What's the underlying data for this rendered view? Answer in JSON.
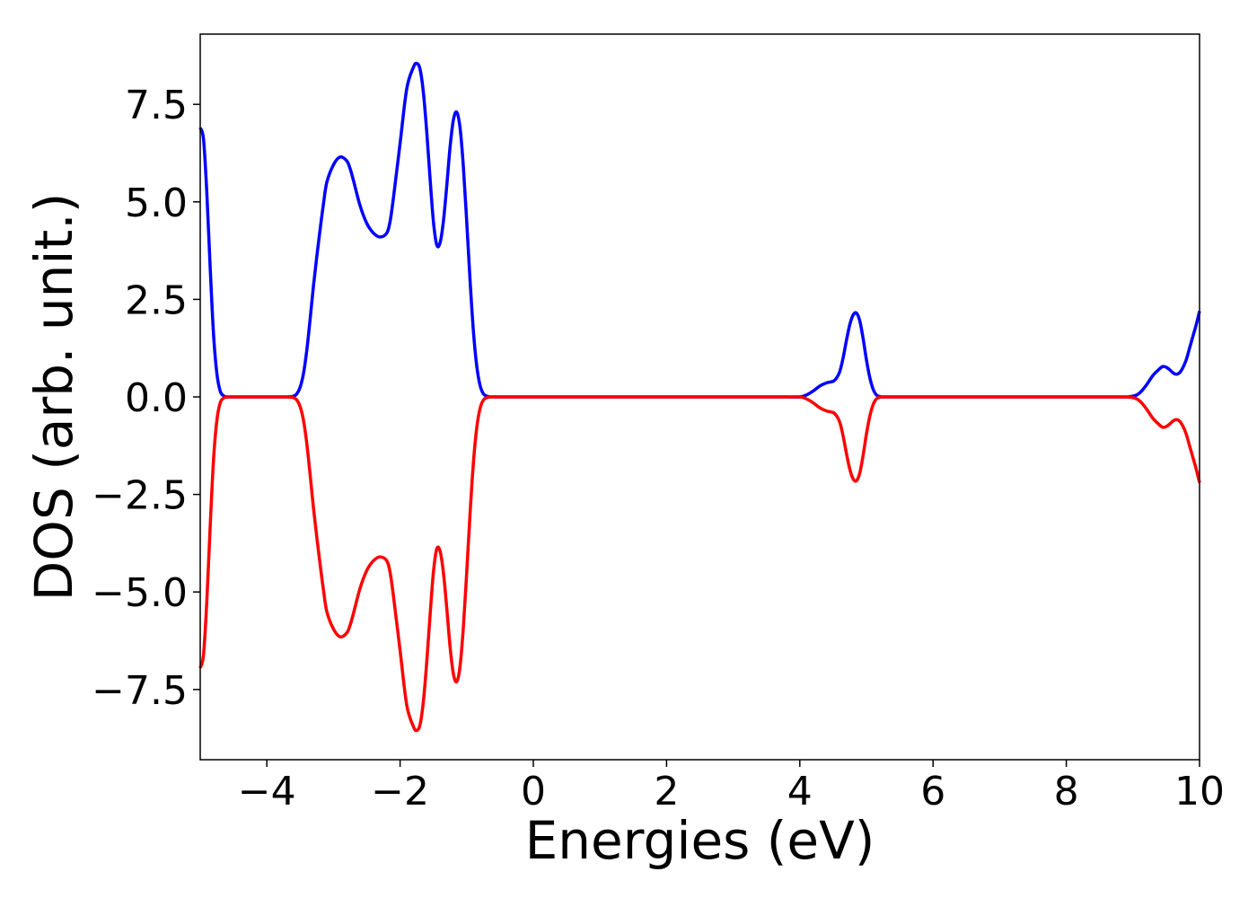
{
  "chart_data": {
    "type": "line",
    "title": "",
    "xlabel": "Energies (eV)",
    "ylabel": "DOS (arb. unit.)",
    "xlim": [
      -5,
      10
    ],
    "ylim": [
      -9.3,
      9.3
    ],
    "grid": false,
    "legend": "none",
    "x_ticks": [
      -4,
      -2,
      0,
      2,
      4,
      6,
      8,
      10
    ],
    "x_tick_labels": [
      "−4",
      "−2",
      "0",
      "2",
      "4",
      "6",
      "8",
      "10"
    ],
    "y_ticks": [
      7.5,
      5.0,
      2.5,
      0.0,
      -2.5,
      -5.0,
      -7.5
    ],
    "y_tick_labels": [
      "7.5",
      "5.0",
      "2.5",
      "0.0",
      "−2.5",
      "−5.0",
      "−7.5"
    ],
    "series": [
      {
        "color": "#0000ff",
        "x": [
          -5.0,
          -4.95,
          -4.9,
          -4.85,
          -4.8,
          -4.75,
          -4.7,
          -4.65,
          -4.6,
          -4.55,
          -4.5,
          -4.45,
          -4.4,
          -4.3,
          -4.2,
          -4.0,
          -3.8,
          -3.7,
          -3.6,
          -3.55,
          -3.5,
          -3.45,
          -3.4,
          -3.35,
          -3.3,
          -3.25,
          -3.2,
          -3.15,
          -3.1,
          -3.0,
          -2.9,
          -2.8,
          -2.75,
          -2.7,
          -2.6,
          -2.5,
          -2.4,
          -2.3,
          -2.2,
          -2.15,
          -2.1,
          -2.0,
          -1.9,
          -1.8,
          -1.75,
          -1.7,
          -1.65,
          -1.6,
          -1.55,
          -1.5,
          -1.45,
          -1.4,
          -1.35,
          -1.3,
          -1.25,
          -1.2,
          -1.15,
          -1.1,
          -1.05,
          -1.0,
          -0.95,
          -0.9,
          -0.85,
          -0.8,
          -0.75,
          -0.7,
          -0.65,
          -0.6,
          -0.55,
          -0.5,
          0.0,
          1.0,
          2.0,
          3.0,
          3.8,
          4.0,
          4.1,
          4.2,
          4.3,
          4.4,
          4.5,
          4.55,
          4.6,
          4.65,
          4.7,
          4.75,
          4.8,
          4.85,
          4.9,
          4.95,
          5.0,
          5.05,
          5.1,
          5.15,
          5.2,
          5.25,
          5.3,
          5.35,
          5.4,
          5.5,
          6.0,
          7.0,
          8.0,
          8.8,
          9.0,
          9.1,
          9.2,
          9.3,
          9.4,
          9.45,
          9.5,
          9.55,
          9.6,
          9.65,
          9.7,
          9.75,
          9.8,
          9.85,
          9.9,
          9.95,
          10.0
        ],
        "values": [
          6.9,
          6.6,
          5.2,
          3.3,
          1.6,
          0.6,
          0.15,
          0.03,
          0.0,
          0.0,
          0.0,
          0.0,
          0.0,
          0.0,
          0.0,
          0.0,
          0.0,
          0.0,
          0.02,
          0.08,
          0.25,
          0.6,
          1.2,
          2.0,
          2.85,
          3.6,
          4.3,
          4.95,
          5.5,
          5.95,
          6.15,
          6.05,
          5.85,
          5.55,
          4.9,
          4.45,
          4.2,
          4.1,
          4.2,
          4.5,
          5.1,
          6.5,
          7.9,
          8.45,
          8.55,
          8.4,
          7.8,
          6.8,
          5.6,
          4.5,
          3.9,
          3.95,
          4.5,
          5.4,
          6.4,
          7.1,
          7.3,
          6.9,
          5.9,
          4.5,
          3.0,
          1.7,
          0.8,
          0.3,
          0.08,
          0.02,
          0.0,
          0.0,
          0.0,
          0.0,
          0.0,
          0.0,
          0.0,
          0.0,
          0.0,
          0.0,
          0.05,
          0.15,
          0.28,
          0.36,
          0.4,
          0.48,
          0.65,
          1.0,
          1.45,
          1.85,
          2.1,
          2.15,
          1.95,
          1.5,
          0.95,
          0.5,
          0.2,
          0.05,
          0.01,
          0.0,
          0.0,
          0.0,
          0.0,
          0.0,
          0.0,
          0.0,
          0.0,
          0.0,
          0.02,
          0.1,
          0.3,
          0.55,
          0.72,
          0.78,
          0.76,
          0.7,
          0.62,
          0.58,
          0.62,
          0.75,
          0.95,
          1.25,
          1.55,
          1.85,
          2.2
        ]
      },
      {
        "color": "#ff0000",
        "x": [
          -5.0,
          -4.95,
          -4.9,
          -4.85,
          -4.8,
          -4.75,
          -4.7,
          -4.65,
          -4.6,
          -4.55,
          -4.5,
          -4.45,
          -4.4,
          -4.3,
          -4.2,
          -4.0,
          -3.8,
          -3.7,
          -3.6,
          -3.55,
          -3.5,
          -3.45,
          -3.4,
          -3.35,
          -3.3,
          -3.25,
          -3.2,
          -3.15,
          -3.1,
          -3.0,
          -2.9,
          -2.8,
          -2.75,
          -2.7,
          -2.6,
          -2.5,
          -2.4,
          -2.3,
          -2.2,
          -2.15,
          -2.1,
          -2.0,
          -1.9,
          -1.8,
          -1.75,
          -1.7,
          -1.65,
          -1.6,
          -1.55,
          -1.5,
          -1.45,
          -1.4,
          -1.35,
          -1.3,
          -1.25,
          -1.2,
          -1.15,
          -1.1,
          -1.05,
          -1.0,
          -0.95,
          -0.9,
          -0.85,
          -0.8,
          -0.75,
          -0.7,
          -0.65,
          -0.6,
          -0.55,
          -0.5,
          0.0,
          1.0,
          2.0,
          3.0,
          3.8,
          4.0,
          4.1,
          4.2,
          4.3,
          4.4,
          4.5,
          4.55,
          4.6,
          4.65,
          4.7,
          4.75,
          4.8,
          4.85,
          4.9,
          4.95,
          5.0,
          5.05,
          5.1,
          5.15,
          5.2,
          5.25,
          5.3,
          5.35,
          5.4,
          5.5,
          6.0,
          7.0,
          8.0,
          8.8,
          9.0,
          9.1,
          9.2,
          9.3,
          9.4,
          9.45,
          9.5,
          9.55,
          9.6,
          9.65,
          9.7,
          9.75,
          9.8,
          9.85,
          9.9,
          9.95,
          10.0
        ],
        "values": [
          -6.95,
          -6.6,
          -5.2,
          -3.3,
          -1.6,
          -0.6,
          -0.15,
          -0.03,
          0.0,
          0.0,
          0.0,
          0.0,
          0.0,
          0.0,
          0.0,
          0.0,
          0.0,
          0.0,
          -0.02,
          -0.08,
          -0.25,
          -0.6,
          -1.2,
          -2.0,
          -2.85,
          -3.6,
          -4.3,
          -4.95,
          -5.5,
          -5.95,
          -6.15,
          -6.05,
          -5.85,
          -5.55,
          -4.9,
          -4.45,
          -4.2,
          -4.1,
          -4.2,
          -4.5,
          -5.1,
          -6.5,
          -7.9,
          -8.45,
          -8.55,
          -8.4,
          -7.8,
          -6.8,
          -5.6,
          -4.5,
          -3.9,
          -3.95,
          -4.5,
          -5.4,
          -6.4,
          -7.1,
          -7.3,
          -6.9,
          -5.9,
          -4.5,
          -3.0,
          -1.7,
          -0.8,
          -0.3,
          -0.08,
          -0.02,
          0.0,
          0.0,
          0.0,
          0.0,
          0.0,
          0.0,
          0.0,
          0.0,
          0.0,
          0.0,
          -0.05,
          -0.15,
          -0.28,
          -0.36,
          -0.4,
          -0.48,
          -0.65,
          -1.0,
          -1.45,
          -1.85,
          -2.1,
          -2.15,
          -1.95,
          -1.5,
          -0.95,
          -0.5,
          -0.2,
          -0.05,
          -0.01,
          0.0,
          0.0,
          0.0,
          0.0,
          0.0,
          0.0,
          0.0,
          0.0,
          0.0,
          -0.02,
          -0.1,
          -0.3,
          -0.55,
          -0.72,
          -0.78,
          -0.76,
          -0.7,
          -0.62,
          -0.58,
          -0.62,
          -0.75,
          -0.95,
          -1.25,
          -1.55,
          -1.85,
          -2.2
        ]
      }
    ]
  }
}
